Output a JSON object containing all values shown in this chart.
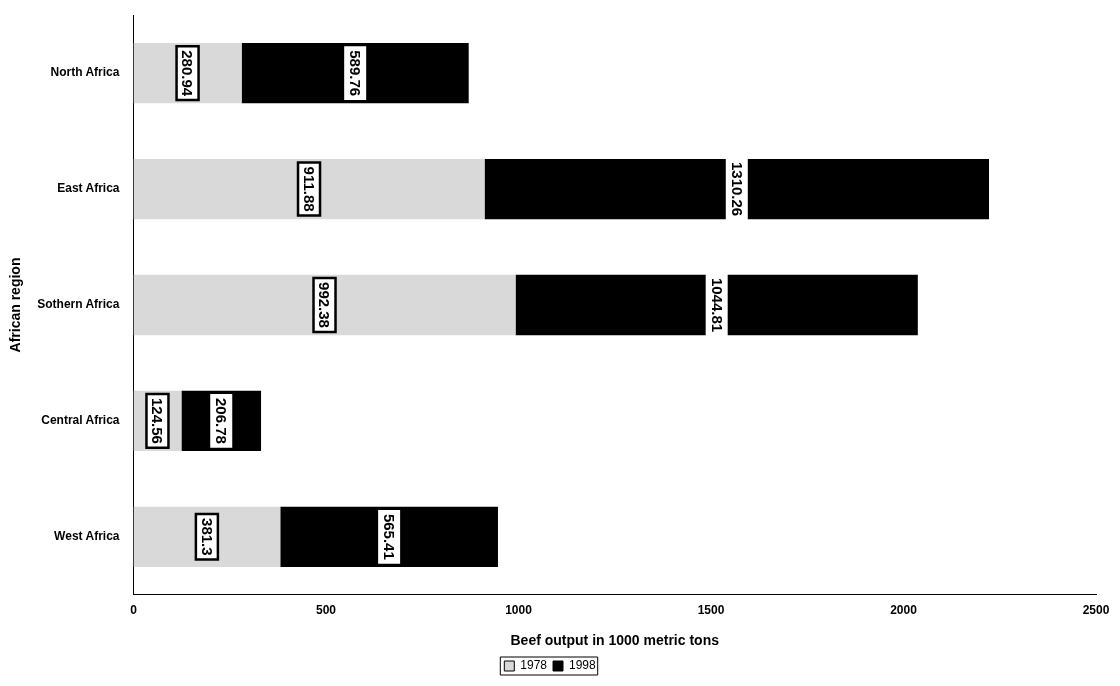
{
  "chart_data": {
    "type": "bar",
    "orientation": "horizontal",
    "stacked": true,
    "xlabel": "Beef output in 1000 metric tons",
    "ylabel": "African region",
    "categories": [
      "North Africa",
      "East Africa",
      "Sothern Africa",
      "Central Africa",
      "West Africa"
    ],
    "series": [
      {
        "name": "1978",
        "color": "#d9d9d9",
        "values": [
          280.94,
          911.88,
          992.38,
          124.56,
          381.3
        ]
      },
      {
        "name": "1998",
        "color": "#000000",
        "values": [
          589.76,
          1310.26,
          1044.81,
          206.78,
          565.41
        ]
      }
    ],
    "xlim": [
      0,
      2500
    ],
    "xticks": [
      0,
      500,
      1000,
      1500,
      2000,
      2500
    ],
    "grid": false,
    "legend": "bottom",
    "data_labels": true
  }
}
